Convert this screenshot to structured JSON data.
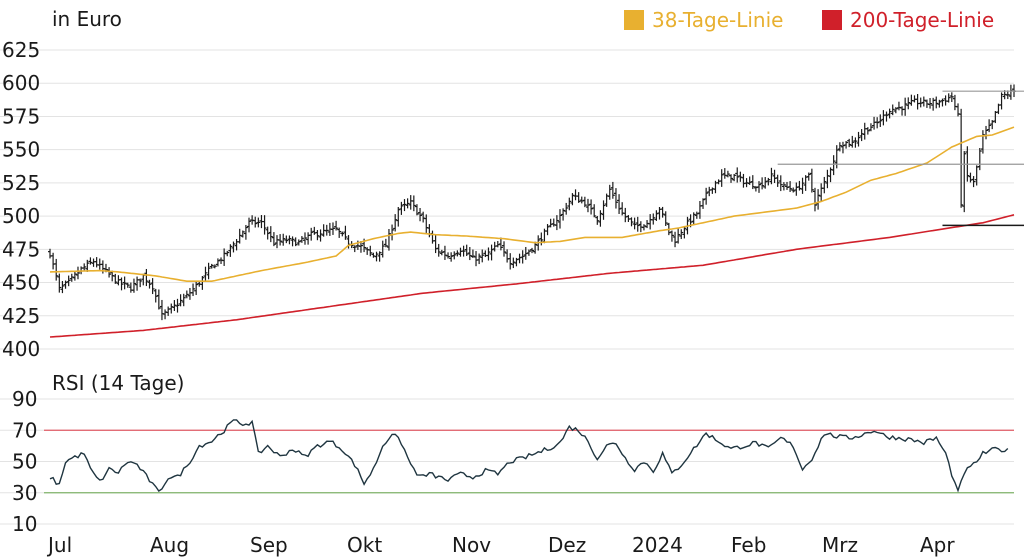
{
  "chart_data": [
    {
      "type": "ohlc",
      "ylabel": "in Euro",
      "ylim": [
        400,
        625
      ],
      "yticks": [
        400,
        425,
        450,
        475,
        500,
        525,
        550,
        575,
        600,
        625
      ],
      "xticks": [
        "Jul",
        "Aug",
        "Sep",
        "Okt",
        "Nov",
        "Dez",
        "2024",
        "Feb",
        "Mrz",
        "Apr"
      ],
      "grid": true,
      "legend_position": "top-right",
      "colors": {
        "price": "#1a1a1a",
        "ma38": "#e8b030",
        "ma200": "#d0202a",
        "reference": "#999999"
      },
      "close_anchors": [
        [
          0,
          472
        ],
        [
          3,
          445
        ],
        [
          6,
          450
        ],
        [
          10,
          460
        ],
        [
          14,
          466
        ],
        [
          18,
          458
        ],
        [
          22,
          450
        ],
        [
          26,
          446
        ],
        [
          30,
          455
        ],
        [
          33,
          447
        ],
        [
          36,
          425
        ],
        [
          40,
          432
        ],
        [
          44,
          440
        ],
        [
          48,
          450
        ],
        [
          52,
          462
        ],
        [
          56,
          470
        ],
        [
          60,
          482
        ],
        [
          64,
          495
        ],
        [
          68,
          495
        ],
        [
          72,
          480
        ],
        [
          76,
          482
        ],
        [
          80,
          480
        ],
        [
          84,
          486
        ],
        [
          88,
          488
        ],
        [
          92,
          490
        ],
        [
          96,
          480
        ],
        [
          100,
          477
        ],
        [
          104,
          470
        ],
        [
          108,
          478
        ],
        [
          112,
          505
        ],
        [
          116,
          510
        ],
        [
          120,
          497
        ],
        [
          124,
          475
        ],
        [
          128,
          470
        ],
        [
          132,
          475
        ],
        [
          136,
          468
        ],
        [
          140,
          470
        ],
        [
          144,
          478
        ],
        [
          148,
          466
        ],
        [
          152,
          470
        ],
        [
          156,
          478
        ],
        [
          160,
          490
        ],
        [
          164,
          500
        ],
        [
          168,
          515
        ],
        [
          172,
          510
        ],
        [
          176,
          498
        ],
        [
          180,
          520
        ],
        [
          184,
          502
        ],
        [
          188,
          492
        ],
        [
          192,
          495
        ],
        [
          196,
          506
        ],
        [
          199,
          488
        ],
        [
          201,
          482
        ],
        [
          204,
          492
        ],
        [
          208,
          502
        ],
        [
          212,
          520
        ],
        [
          216,
          530
        ],
        [
          220,
          530
        ],
        [
          224,
          525
        ],
        [
          228,
          523
        ],
        [
          232,
          530
        ],
        [
          236,
          522
        ],
        [
          240,
          520
        ],
        [
          244,
          530
        ],
        [
          246,
          510
        ],
        [
          250,
          530
        ],
        [
          254,
          555
        ],
        [
          258,
          555
        ],
        [
          262,
          565
        ],
        [
          266,
          570
        ],
        [
          270,
          580
        ],
        [
          274,
          582
        ],
        [
          278,
          586
        ],
        [
          282,
          585
        ],
        [
          286,
          586
        ],
        [
          290,
          590
        ],
        [
          292,
          575
        ],
        [
          293,
          510
        ],
        [
          294,
          545
        ],
        [
          295,
          530
        ],
        [
          297,
          525
        ],
        [
          300,
          560
        ],
        [
          303,
          570
        ],
        [
          306,
          590
        ],
        [
          310,
          594
        ]
      ],
      "ma38_anchors": [
        [
          0,
          458
        ],
        [
          16,
          459
        ],
        [
          22,
          458
        ],
        [
          34,
          455
        ],
        [
          44,
          451
        ],
        [
          52,
          451
        ],
        [
          58,
          454
        ],
        [
          68,
          459
        ],
        [
          82,
          465
        ],
        [
          92,
          470
        ],
        [
          96,
          478
        ],
        [
          104,
          483
        ],
        [
          112,
          487
        ],
        [
          116,
          488
        ],
        [
          124,
          486
        ],
        [
          134,
          485
        ],
        [
          146,
          483
        ],
        [
          156,
          480
        ],
        [
          164,
          481
        ],
        [
          172,
          484
        ],
        [
          184,
          484
        ],
        [
          196,
          489
        ],
        [
          202,
          491
        ],
        [
          210,
          495
        ],
        [
          220,
          500
        ],
        [
          230,
          503
        ],
        [
          240,
          506
        ],
        [
          248,
          511
        ],
        [
          256,
          518
        ],
        [
          264,
          527
        ],
        [
          272,
          532
        ],
        [
          282,
          540
        ],
        [
          290,
          552
        ],
        [
          298,
          560
        ],
        [
          303,
          561
        ],
        [
          310,
          567
        ]
      ],
      "ma200_anchors": [
        [
          0,
          409
        ],
        [
          30,
          414
        ],
        [
          60,
          422
        ],
        [
          90,
          432
        ],
        [
          120,
          442
        ],
        [
          150,
          449
        ],
        [
          180,
          457
        ],
        [
          210,
          463
        ],
        [
          240,
          475
        ],
        [
          270,
          484
        ],
        [
          300,
          495
        ],
        [
          310,
          501
        ]
      ],
      "reference_lines": [
        {
          "value": 594,
          "from": 287,
          "to": 320,
          "color": "reference"
        },
        {
          "value": 539,
          "from": 234,
          "to": 320,
          "color": "reference"
        },
        {
          "value": 493,
          "from": 287,
          "to": 320,
          "color": "price"
        }
      ],
      "series": [
        {
          "name": "38-Tage-Linie",
          "color": "#e8b030"
        },
        {
          "name": "200-Tage-Linie",
          "color": "#d0202a"
        }
      ]
    },
    {
      "type": "line",
      "title": "RSI (14 Tage)",
      "ylim": [
        10,
        90
      ],
      "yticks": [
        10,
        30,
        50,
        70,
        90
      ],
      "grid": true,
      "colors": {
        "rsi": "#1f3540",
        "upper": "#e05a64",
        "lower": "#7fb36a"
      },
      "reference_lines": [
        {
          "value": 70,
          "color": "upper"
        },
        {
          "value": 30,
          "color": "lower"
        }
      ],
      "rsi_anchors": [
        [
          0,
          40
        ],
        [
          3,
          35
        ],
        [
          5,
          50
        ],
        [
          8,
          53
        ],
        [
          11,
          55
        ],
        [
          13,
          45
        ],
        [
          16,
          37
        ],
        [
          19,
          45
        ],
        [
          22,
          43
        ],
        [
          25,
          50
        ],
        [
          28,
          48
        ],
        [
          32,
          38
        ],
        [
          35,
          30
        ],
        [
          38,
          40
        ],
        [
          41,
          40
        ],
        [
          44,
          47
        ],
        [
          48,
          60
        ],
        [
          52,
          63
        ],
        [
          56,
          70
        ],
        [
          59,
          76
        ],
        [
          62,
          74
        ],
        [
          65,
          75
        ],
        [
          67,
          55
        ],
        [
          70,
          60
        ],
        [
          74,
          53
        ],
        [
          78,
          58
        ],
        [
          82,
          53
        ],
        [
          86,
          60
        ],
        [
          90,
          63
        ],
        [
          94,
          58
        ],
        [
          98,
          48
        ],
        [
          101,
          36
        ],
        [
          104,
          45
        ],
        [
          107,
          60
        ],
        [
          110,
          68
        ],
        [
          113,
          62
        ],
        [
          116,
          48
        ],
        [
          119,
          40
        ],
        [
          122,
          42
        ],
        [
          125,
          40
        ],
        [
          128,
          38
        ],
        [
          132,
          42
        ],
        [
          136,
          40
        ],
        [
          140,
          44
        ],
        [
          144,
          42
        ],
        [
          148,
          50
        ],
        [
          152,
          52
        ],
        [
          156,
          55
        ],
        [
          160,
          58
        ],
        [
          164,
          62
        ],
        [
          167,
          72
        ],
        [
          170,
          70
        ],
        [
          173,
          63
        ],
        [
          176,
          52
        ],
        [
          179,
          60
        ],
        [
          182,
          62
        ],
        [
          185,
          52
        ],
        [
          188,
          45
        ],
        [
          191,
          50
        ],
        [
          194,
          44
        ],
        [
          197,
          55
        ],
        [
          200,
          42
        ],
        [
          203,
          48
        ],
        [
          207,
          58
        ],
        [
          211,
          68
        ],
        [
          215,
          63
        ],
        [
          219,
          58
        ],
        [
          223,
          60
        ],
        [
          227,
          62
        ],
        [
          231,
          58
        ],
        [
          235,
          65
        ],
        [
          239,
          60
        ],
        [
          242,
          45
        ],
        [
          245,
          52
        ],
        [
          249,
          68
        ],
        [
          253,
          66
        ],
        [
          257,
          65
        ],
        [
          261,
          67
        ],
        [
          265,
          70
        ],
        [
          269,
          66
        ],
        [
          273,
          65
        ],
        [
          277,
          64
        ],
        [
          281,
          62
        ],
        [
          285,
          65
        ],
        [
          288,
          55
        ],
        [
          290,
          42
        ],
        [
          292,
          30
        ],
        [
          294,
          43
        ],
        [
          297,
          48
        ],
        [
          300,
          55
        ],
        [
          304,
          58
        ],
        [
          308,
          57
        ]
      ]
    }
  ]
}
